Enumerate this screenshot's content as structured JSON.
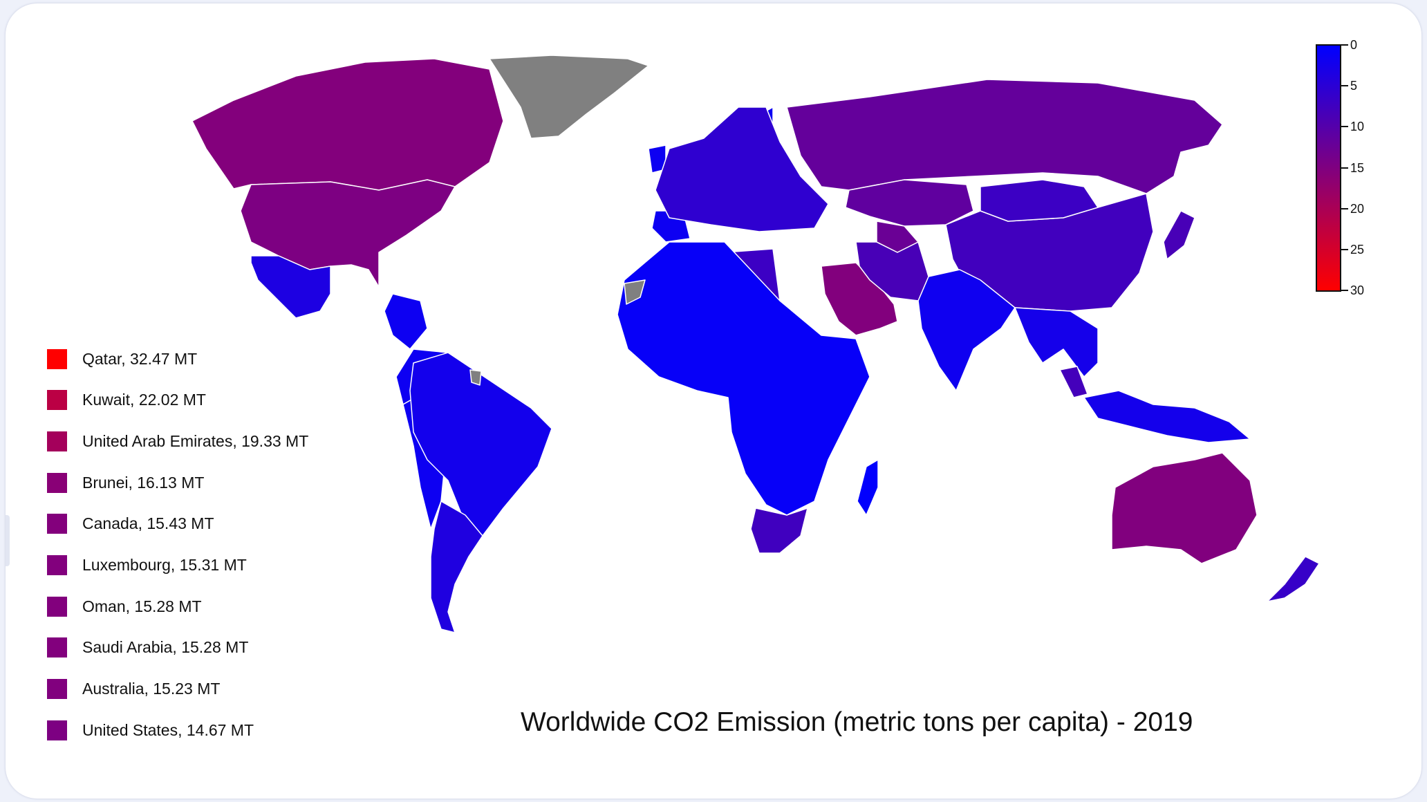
{
  "title": "Worldwide CO2 Emission (metric tons per capita) - 2019",
  "colorbar": {
    "min": 0,
    "max": 30,
    "ticks": [
      "0",
      "5",
      "10",
      "15",
      "20",
      "25",
      "30"
    ],
    "gradient": [
      "#0000ff",
      "#ff0000"
    ]
  },
  "colors": {
    "no_data": "#808080",
    "border": "#ffffff",
    "scale_start": "#0000ff",
    "scale_end": "#ff0000"
  },
  "legend": [
    {
      "label": "Qatar, 32.47 MT",
      "value": 32.47
    },
    {
      "label": "Kuwait, 22.02 MT",
      "value": 22.02
    },
    {
      "label": "United Arab Emirates, 19.33 MT",
      "value": 19.33
    },
    {
      "label": "Brunei, 16.13 MT",
      "value": 16.13
    },
    {
      "label": "Canada, 15.43 MT",
      "value": 15.43
    },
    {
      "label": "Luxembourg, 15.31 MT",
      "value": 15.31
    },
    {
      "label": "Oman, 15.28 MT",
      "value": 15.28
    },
    {
      "label": "Saudi Arabia, 15.28 MT",
      "value": 15.28
    },
    {
      "label": "Australia, 15.23 MT",
      "value": 15.23
    },
    {
      "label": "United States, 14.67 MT",
      "value": 14.67
    }
  ],
  "regions": [
    {
      "name": "Canada",
      "value": 15.43
    },
    {
      "name": "United States",
      "value": 14.67
    },
    {
      "name": "Greenland",
      "value": null
    },
    {
      "name": "Russia",
      "value": 11.8
    },
    {
      "name": "Kazakhstan",
      "value": 11.3
    },
    {
      "name": "China",
      "value": 7.6
    },
    {
      "name": "Mongolia",
      "value": 7.0
    },
    {
      "name": "Saudi Arabia",
      "value": 15.28
    },
    {
      "name": "Australia",
      "value": 15.23
    },
    {
      "name": "South Africa",
      "value": 7.5
    },
    {
      "name": "Libya",
      "value": 7.0
    },
    {
      "name": "India",
      "value": 1.8
    },
    {
      "name": "Brazil",
      "value": 2.2
    },
    {
      "name": "Argentina",
      "value": 3.7
    },
    {
      "name": "Mexico",
      "value": 3.4
    },
    {
      "name": "Europe",
      "value": 5.5
    },
    {
      "name": "Africa",
      "value": 0.8
    },
    {
      "name": "Southeast Asia",
      "value": 2.5
    },
    {
      "name": "Japan",
      "value": 8.5
    },
    {
      "name": "Iran",
      "value": 8.5
    },
    {
      "name": "Turkmenistan",
      "value": 12.5
    },
    {
      "name": "Indonesia",
      "value": 2.3
    },
    {
      "name": "Malaysia",
      "value": 8.0
    },
    {
      "name": "New Zealand",
      "value": 6.5
    },
    {
      "name": "Madagascar",
      "value": 0.2
    },
    {
      "name": "Western Sahara",
      "value": null
    },
    {
      "name": "French Guiana",
      "value": null
    }
  ]
}
